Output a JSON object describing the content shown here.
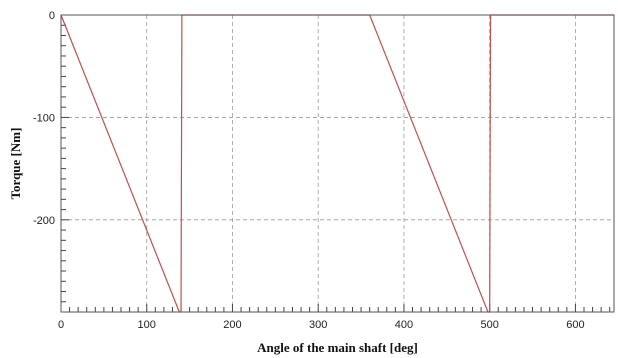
{
  "chart_data": {
    "type": "line",
    "xlabel": "Angle of the main shaft [deg]",
    "ylabel": "Torque [Nm]",
    "xlim": [
      0,
      645
    ],
    "ylim": [
      -290,
      0
    ],
    "x_ticks": [
      0,
      100,
      200,
      300,
      400,
      500,
      600
    ],
    "y_ticks": [
      0,
      -100,
      -200
    ],
    "grid": true,
    "series": [
      {
        "color": "#c0504d",
        "x": [
          0,
          138,
          140,
          141,
          360,
          498,
          500,
          501,
          645
        ],
        "y": [
          0,
          -290,
          -290,
          0,
          0,
          -290,
          -290,
          0,
          0
        ]
      }
    ]
  }
}
